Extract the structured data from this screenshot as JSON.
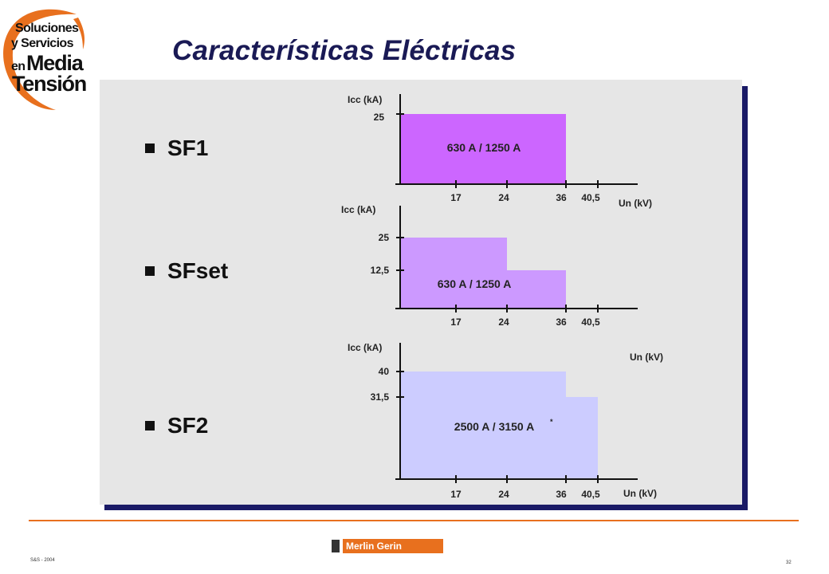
{
  "slide": {
    "title": "Características Eléctricas",
    "footer_left": "S&S - 2004",
    "page_number": "32"
  },
  "logo": {
    "line1": "Soluciones",
    "line2": "y Servicios",
    "line3": "en",
    "line4": "Media",
    "line5": "Tensión",
    "accent_color": "#e8701e"
  },
  "brand": {
    "name": "Merlin Gerin",
    "color": "#e8701e"
  },
  "bullets": [
    "SF1",
    "SFset",
    "SF2"
  ],
  "chart_data": [
    {
      "type": "area",
      "name": "SF1",
      "ylabel": "Icc (kA)",
      "xlabel": "Un (kV)",
      "x_ticks": [
        "17",
        "24",
        "36",
        "40,5"
      ],
      "y_ticks": [
        "25"
      ],
      "steps": [
        {
          "x_from": 0,
          "x_to": 36,
          "icc": 25
        }
      ],
      "label": "630 A / 1250 A",
      "fill": "#cc66ff"
    },
    {
      "type": "area",
      "name": "SFset",
      "ylabel": "Icc (kA)",
      "xlabel": "",
      "x_ticks": [
        "17",
        "24",
        "36",
        "40,5"
      ],
      "y_ticks": [
        "25",
        "12,5"
      ],
      "steps": [
        {
          "x_from": 0,
          "x_to": 24,
          "icc": 25
        },
        {
          "x_from": 24,
          "x_to": 36,
          "icc": 12.5
        }
      ],
      "label": "630 A / 1250 A",
      "fill": "#cc99ff"
    },
    {
      "type": "area",
      "name": "SF2",
      "ylabel": "Icc (kA)",
      "xlabel": "Un (kV)",
      "x_ticks": [
        "17",
        "24",
        "36",
        "40,5"
      ],
      "y_ticks": [
        "40",
        "31,5"
      ],
      "steps": [
        {
          "x_from": 0,
          "x_to": 36,
          "icc": 40
        },
        {
          "x_from": 36,
          "x_to": 40.5,
          "icc": 31.5
        }
      ],
      "label": "2500 A / 3150 A",
      "label_suffix": "*",
      "fill": "#ccccff",
      "extra_label": "Un (kV)"
    }
  ]
}
